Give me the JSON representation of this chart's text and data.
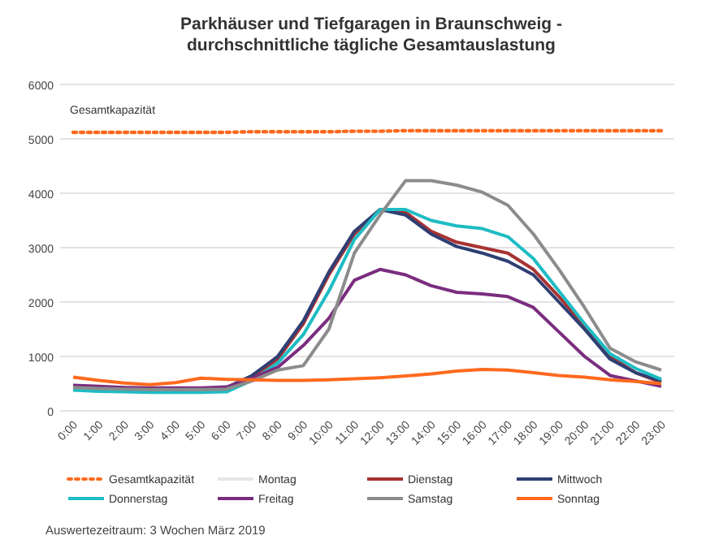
{
  "chart_data": {
    "type": "line",
    "title": "Parkhäuser und Tiefgaragen in Braunschweig -\ndurchschnittliche tägliche Gesamtauslastung",
    "categories": [
      "0:00",
      "1:00",
      "2:00",
      "3:00",
      "4:00",
      "5:00",
      "6:00",
      "7:00",
      "8:00",
      "9:00",
      "10:00",
      "11:00",
      "12:00",
      "13:00",
      "14:00",
      "15:00",
      "16:00",
      "17:00",
      "18:00",
      "19:00",
      "20:00",
      "21:00",
      "22:00",
      "23:00"
    ],
    "series": [
      {
        "name": "Gesamtkapazität",
        "color": "#ff6a1f",
        "line_style": "dotted",
        "values": [
          5120,
          5120,
          5120,
          5120,
          5120,
          5120,
          5120,
          5130,
          5130,
          5130,
          5130,
          5140,
          5140,
          5150,
          5150,
          5150,
          5150,
          5150,
          5150,
          5150,
          5150,
          5150,
          5150,
          5150
        ]
      },
      {
        "name": "Montag",
        "color": "#e6e6e6",
        "values": [
          null,
          null,
          null,
          null,
          null,
          null,
          null,
          null,
          null,
          null,
          null,
          null,
          null,
          null,
          null,
          null,
          null,
          null,
          null,
          null,
          null,
          null,
          null,
          null
        ]
      },
      {
        "name": "Dienstag",
        "color": "#a83232",
        "values": [
          440,
          420,
          400,
          390,
          390,
          390,
          420,
          620,
          950,
          1600,
          2500,
          3250,
          3700,
          3650,
          3300,
          3100,
          3000,
          2900,
          2600,
          2100,
          1550,
          1000,
          700,
          520
        ]
      },
      {
        "name": "Mittwoch",
        "color": "#2f3f73",
        "values": [
          450,
          430,
          410,
          400,
          400,
          400,
          430,
          650,
          1000,
          1650,
          2550,
          3300,
          3700,
          3600,
          3250,
          3020,
          2900,
          2750,
          2500,
          2000,
          1500,
          950,
          700,
          550
        ]
      },
      {
        "name": "Donnerstag",
        "color": "#1fbcc4",
        "values": [
          380,
          360,
          350,
          340,
          340,
          340,
          350,
          560,
          880,
          1400,
          2200,
          3150,
          3700,
          3700,
          3500,
          3400,
          3350,
          3200,
          2800,
          2200,
          1600,
          1050,
          780,
          580
        ]
      },
      {
        "name": "Freitag",
        "color": "#7a2d7f",
        "values": [
          470,
          450,
          430,
          420,
          420,
          420,
          440,
          600,
          800,
          1200,
          1700,
          2400,
          2600,
          2500,
          2300,
          2180,
          2150,
          2100,
          1900,
          1450,
          1000,
          650,
          550,
          450
        ]
      },
      {
        "name": "Samstag",
        "color": "#8c8c8c",
        "values": [
          430,
          410,
          400,
          390,
          390,
          390,
          400,
          550,
          750,
          830,
          1500,
          2900,
          3600,
          4230,
          4230,
          4150,
          4020,
          3780,
          3250,
          2600,
          1900,
          1150,
          900,
          750
        ]
      },
      {
        "name": "Sonntag",
        "color": "#ff6a1f",
        "values": [
          620,
          560,
          510,
          480,
          520,
          600,
          580,
          570,
          560,
          560,
          570,
          590,
          610,
          640,
          680,
          730,
          760,
          750,
          700,
          650,
          620,
          570,
          540,
          500
        ]
      }
    ],
    "annotations": [
      "Gesamtkapazität",
      "Auswertezeitraum: 3 Wochen März 2019"
    ],
    "ylim": [
      0,
      6000
    ],
    "yticks": [
      0,
      1000,
      2000,
      3000,
      4000,
      5000,
      6000
    ],
    "grid": "y",
    "legend": "bottom",
    "marker": "none"
  }
}
